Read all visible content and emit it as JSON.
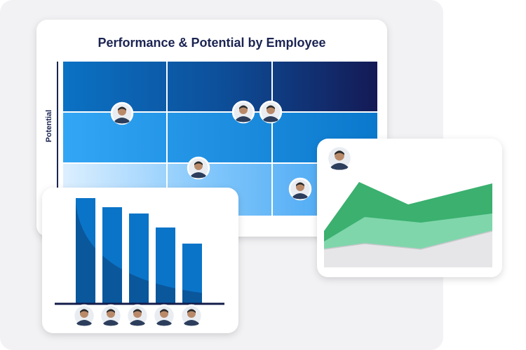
{
  "header": {
    "title": "Performance & Potential by Employee"
  },
  "axis": {
    "y_label": "Potential"
  }
}
